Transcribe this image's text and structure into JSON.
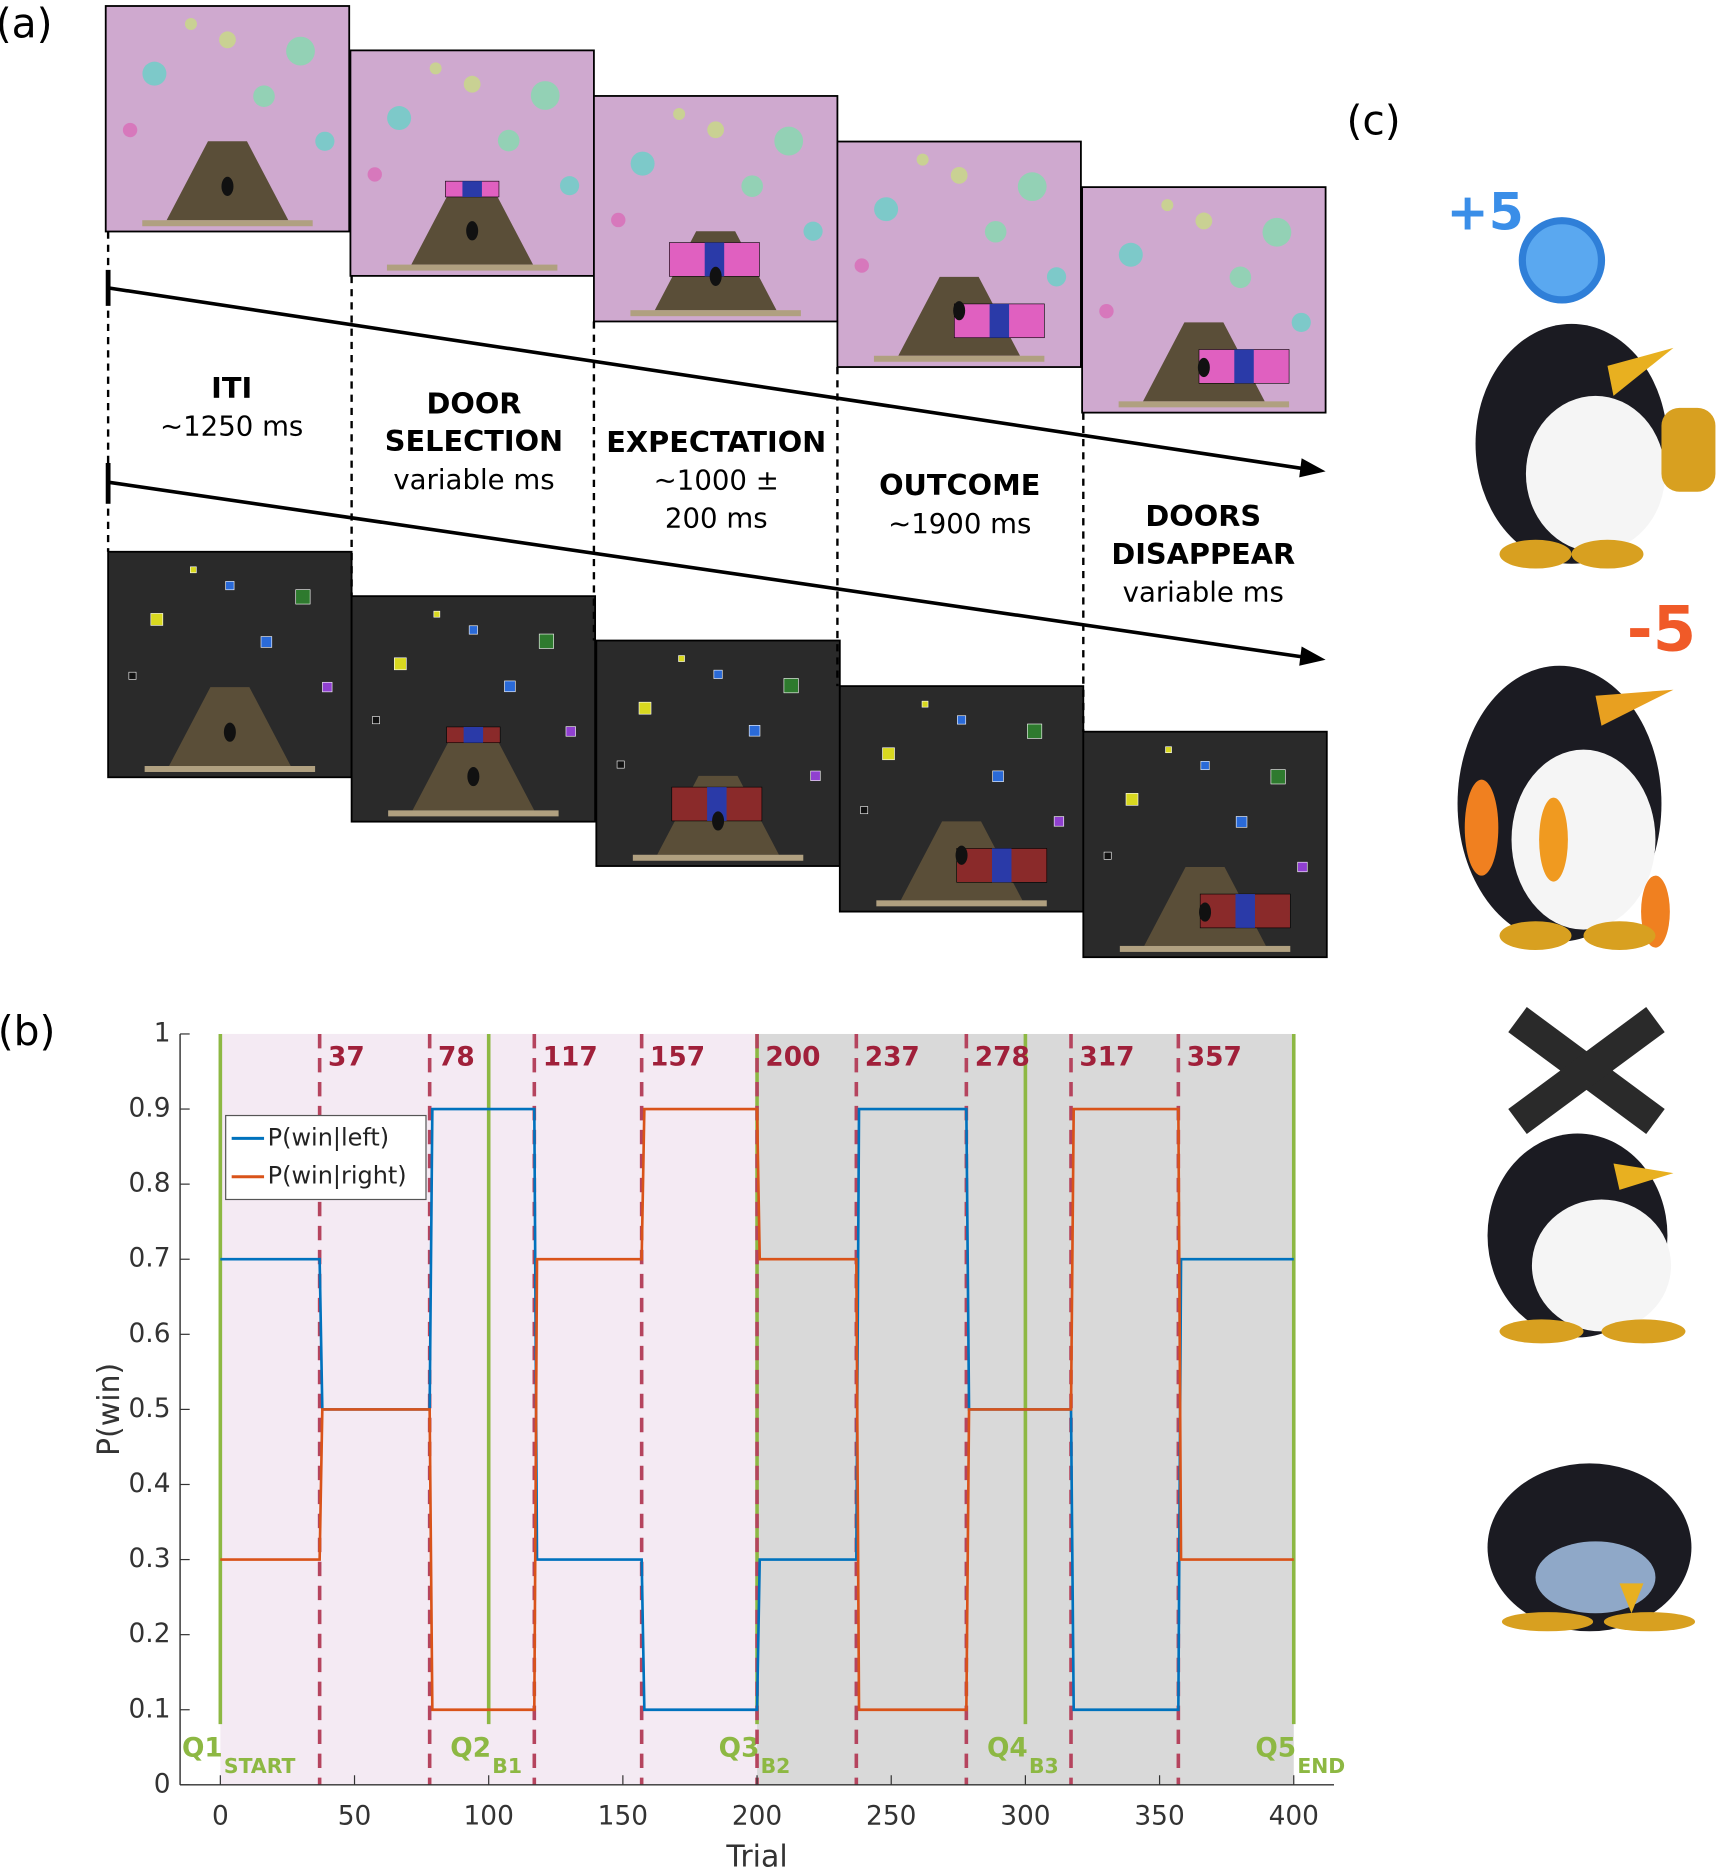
{
  "panel_a": {
    "label": "(a)",
    "stages": [
      {
        "title": [
          "ITI"
        ],
        "timing": [
          "∼1250 ms"
        ]
      },
      {
        "title": [
          "DOOR",
          "SELECTION"
        ],
        "timing": [
          "variable ms"
        ]
      },
      {
        "title": [
          "EXPECTATION"
        ],
        "timing": [
          "∼1000 ±",
          "200 ms"
        ]
      },
      {
        "title": [
          "OUTCOME"
        ],
        "timing": [
          "∼1900 ms"
        ]
      },
      {
        "title": [
          "DOORS",
          "DISAPPEAR"
        ],
        "timing": [
          "variable ms"
        ]
      }
    ]
  },
  "panel_b": {
    "label": "(b)"
  },
  "panel_c": {
    "label": "(c)",
    "gain": "+5",
    "loss": "-5"
  },
  "chart_data": {
    "type": "line",
    "xlabel": "Trial",
    "ylabel": "P(win)",
    "x": [
      0,
      37,
      38,
      78,
      79,
      117,
      118,
      157,
      158,
      200,
      201,
      237,
      238,
      278,
      279,
      317,
      318,
      357,
      358,
      400
    ],
    "series": [
      {
        "name": "P(win|left)",
        "color": "#0072bd",
        "values": [
          0.7,
          0.7,
          0.5,
          0.5,
          0.9,
          0.9,
          0.3,
          0.3,
          0.1,
          0.1,
          0.3,
          0.3,
          0.9,
          0.9,
          0.5,
          0.5,
          0.1,
          0.1,
          0.7,
          0.7
        ]
      },
      {
        "name": "P(win|right)",
        "color": "#d95319",
        "values": [
          0.3,
          0.3,
          0.5,
          0.5,
          0.1,
          0.1,
          0.7,
          0.7,
          0.9,
          0.9,
          0.7,
          0.7,
          0.1,
          0.1,
          0.5,
          0.5,
          0.9,
          0.9,
          0.3,
          0.3
        ]
      }
    ],
    "reversals": [
      37,
      78,
      117,
      157,
      200,
      237,
      278,
      317,
      357
    ],
    "reversal_color": "#b5445e",
    "quarters": [
      {
        "value": 0,
        "label": "Q1",
        "sub": "START"
      },
      {
        "value": 100,
        "label": "Q2",
        "sub": "B1"
      },
      {
        "value": 200,
        "label": "Q3",
        "sub": "B2"
      },
      {
        "value": 300,
        "label": "Q4",
        "sub": "B3"
      },
      {
        "value": 400,
        "label": "Q5",
        "sub": "END"
      }
    ],
    "quarter_color": "#8db843",
    "regions": [
      {
        "from": 0,
        "to": 200,
        "color": "#f4eaf3"
      },
      {
        "from": 200,
        "to": 400,
        "color": "#d9d9d9"
      }
    ],
    "xlim": [
      -15,
      415
    ],
    "xticks": [
      0,
      50,
      100,
      150,
      200,
      250,
      300,
      350,
      400
    ],
    "ylim": [
      0,
      1
    ],
    "yticks": [
      0,
      0.1,
      0.2,
      0.3,
      0.4,
      0.5,
      0.6,
      0.7,
      0.8,
      0.9,
      1
    ],
    "grid": false,
    "legend": "upper left"
  }
}
